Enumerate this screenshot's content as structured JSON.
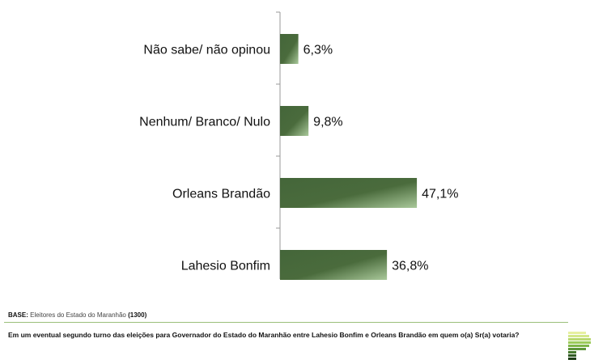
{
  "chart_data": {
    "type": "bar",
    "orientation": "horizontal",
    "categories": [
      "Não sabe/ não opinou",
      "Nenhum/ Branco/ Nulo",
      "Orleans Brandão",
      "Lahesio Bonfim"
    ],
    "values": [
      6.3,
      9.8,
      47.1,
      36.8
    ],
    "data_labels": [
      "6,3%",
      "9,8%",
      "47,1%",
      "36,8%"
    ],
    "xlim": [
      0,
      100
    ],
    "grid": false,
    "bar_color": "#4a6b3c"
  },
  "footer": {
    "base_label": "BASE:",
    "base_text": "Eleitores do Estado do Maranhão",
    "base_count": "(1300)",
    "question": "Em um eventual segundo turno das eleições para Governador do Estado do Maranhão entre Lahesio Bonfim e Orleans Brandão em quem o(a) Sr(a) votaria?"
  }
}
